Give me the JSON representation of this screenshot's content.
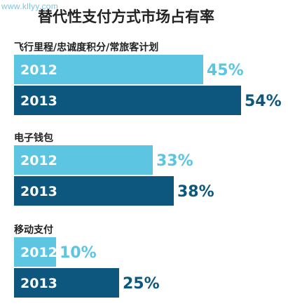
{
  "watermark": "www.kllyy.com",
  "title": "替代性支付方式市场占有率",
  "chart_data": {
    "type": "bar",
    "orientation": "horizontal",
    "title": "替代性支付方式市场占有率",
    "value_suffix": "%",
    "xlim": [
      0,
      60
    ],
    "grid": false,
    "colors": {
      "2012": "#5bc5e2",
      "2013": "#0d577f"
    },
    "groups": [
      {
        "label": "飞行里程/忠诚度积分/常旅客计划",
        "bars": [
          {
            "year": "2012",
            "value": 45
          },
          {
            "year": "2013",
            "value": 54
          }
        ]
      },
      {
        "label": "电子钱包",
        "bars": [
          {
            "year": "2012",
            "value": 33
          },
          {
            "year": "2013",
            "value": 38
          }
        ]
      },
      {
        "label": "移动支付",
        "bars": [
          {
            "year": "2012",
            "value": 10
          },
          {
            "year": "2013",
            "value": 25
          }
        ]
      }
    ]
  }
}
